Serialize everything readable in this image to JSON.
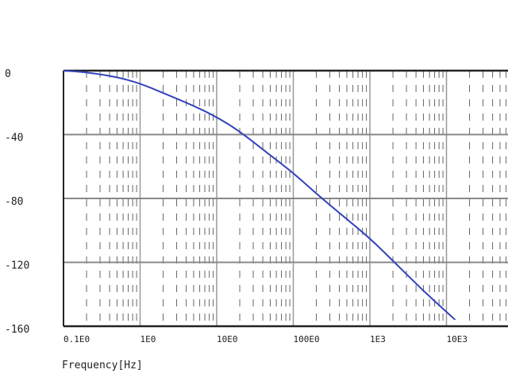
{
  "chart_data": {
    "type": "line",
    "title": "",
    "xlabel": "Frequency[Hz]",
    "ylabel": "",
    "x_scale": "log",
    "xlim": [
      0.1,
      10000
    ],
    "ylim": [
      -160,
      0
    ],
    "grid": true,
    "legend": "none",
    "x_tick_labels": [
      {
        "value": 0.1,
        "label": "0.1E0"
      },
      {
        "value": 1,
        "label": "1E0"
      },
      {
        "value": 10,
        "label": "10E0"
      },
      {
        "value": 100,
        "label": "100E0"
      },
      {
        "value": 1000,
        "label": "1E3"
      },
      {
        "value": 10000,
        "label": "10E3"
      }
    ],
    "y_tick_labels": [
      {
        "value": 0,
        "label": "0"
      },
      {
        "value": -40,
        "label": "-40"
      },
      {
        "value": -80,
        "label": "-80"
      },
      {
        "value": -120,
        "label": "-120"
      },
      {
        "value": -160,
        "label": "-160"
      }
    ],
    "series": [
      {
        "color": "#3344bb",
        "x": [
          0.1,
          0.2,
          0.5,
          1,
          2,
          5,
          10,
          20,
          50,
          100,
          200,
          500,
          1000,
          2000,
          5000,
          13000
        ],
        "y": [
          0,
          -1,
          -4,
          -8,
          -14,
          -22,
          -29,
          -38,
          -53,
          -64,
          -77,
          -93,
          -105,
          -119,
          -138,
          -156
        ]
      }
    ]
  }
}
